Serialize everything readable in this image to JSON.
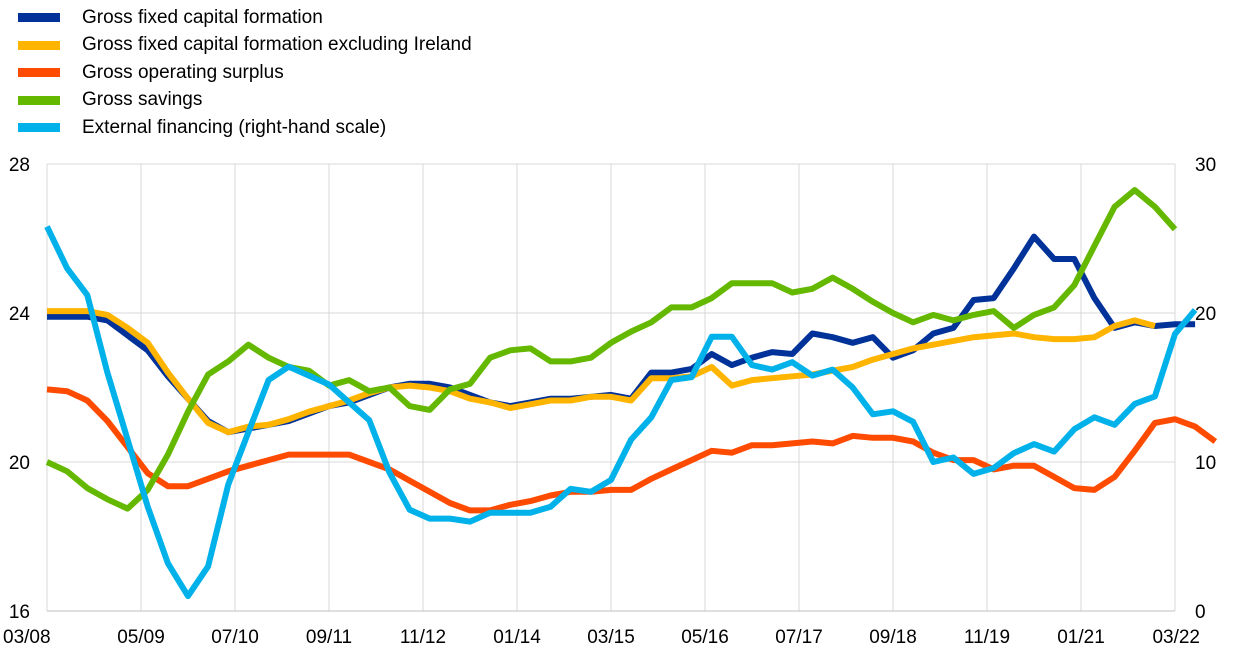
{
  "chart_data": {
    "type": "line",
    "title": "",
    "xlabel": "",
    "ylabel": "",
    "x_tick_labels": [
      "03/08",
      "05/09",
      "07/10",
      "09/11",
      "11/12",
      "01/14",
      "03/15",
      "05/16",
      "07/17",
      "09/18",
      "11/19",
      "01/21",
      "03/22"
    ],
    "x_start": "2008Q1",
    "x_end": "2022Q1",
    "left_axis": {
      "ylim": [
        16,
        28
      ],
      "ticks": [
        16,
        20,
        24,
        28
      ]
    },
    "right_axis": {
      "ylim": [
        0,
        30
      ],
      "ticks": [
        0,
        10,
        20,
        30
      ]
    },
    "grid": "vertical at x tick labels, horizontal at y ticks",
    "legend_position": "top-left",
    "series": [
      {
        "name": "Gross fixed capital formation",
        "axis": "left",
        "color": "#003299",
        "values": [
          23.9,
          23.9,
          23.9,
          23.8,
          23.4,
          23.0,
          22.3,
          21.7,
          21.1,
          20.8,
          20.9,
          21.0,
          21.1,
          21.3,
          21.5,
          21.6,
          21.8,
          22.0,
          22.1,
          22.1,
          22.0,
          21.8,
          21.6,
          21.5,
          21.6,
          21.7,
          21.7,
          21.75,
          21.8,
          21.7,
          22.4,
          22.4,
          22.5,
          22.9,
          22.6,
          22.8,
          22.95,
          22.9,
          23.45,
          23.35,
          23.2,
          23.35,
          22.8,
          23.0,
          23.45,
          23.6,
          24.35,
          24.4,
          25.2,
          26.05,
          25.45,
          25.45,
          24.4,
          23.6,
          23.75,
          23.65,
          23.7,
          23.7
        ]
      },
      {
        "name": "Gross fixed capital formation excluding Ireland",
        "axis": "left",
        "color": "#FFB400",
        "values": [
          24.05,
          24.05,
          24.05,
          23.95,
          23.6,
          23.2,
          22.4,
          21.7,
          21.05,
          20.8,
          20.95,
          21.0,
          21.15,
          21.35,
          21.5,
          21.65,
          21.85,
          22.0,
          22.05,
          22.0,
          21.9,
          21.7,
          21.6,
          21.45,
          21.55,
          21.65,
          21.65,
          21.75,
          21.75,
          21.65,
          22.25,
          22.25,
          22.3,
          22.55,
          22.05,
          22.2,
          22.25,
          22.3,
          22.35,
          22.45,
          22.55,
          22.75,
          22.9,
          23.05,
          23.15,
          23.25,
          23.35,
          23.4,
          23.45,
          23.35,
          23.3,
          23.3,
          23.35,
          23.65,
          23.8,
          23.65,
          null,
          null
        ]
      },
      {
        "name": "Gross operating surplus",
        "axis": "left",
        "color": "#FF4B00",
        "values": [
          21.95,
          21.9,
          21.65,
          21.1,
          20.4,
          19.7,
          19.35,
          19.35,
          19.55,
          19.75,
          19.9,
          20.05,
          20.2,
          20.2,
          20.2,
          20.2,
          20.0,
          19.8,
          19.5,
          19.2,
          18.9,
          18.7,
          18.7,
          18.85,
          18.95,
          19.1,
          19.2,
          19.2,
          19.25,
          19.25,
          19.55,
          19.8,
          20.05,
          20.3,
          20.25,
          20.45,
          20.45,
          20.5,
          20.55,
          20.5,
          20.7,
          20.65,
          20.65,
          20.55,
          20.25,
          20.05,
          20.05,
          19.8,
          19.9,
          19.9,
          19.6,
          19.3,
          19.25,
          19.6,
          20.3,
          21.05,
          21.15,
          20.95,
          20.55
        ]
      },
      {
        "name": "Gross savings",
        "axis": "left",
        "color": "#65B800",
        "values": [
          20.0,
          19.75,
          19.3,
          19.0,
          18.75,
          19.25,
          20.2,
          21.35,
          22.35,
          22.7,
          23.15,
          22.8,
          22.55,
          22.45,
          22.05,
          22.2,
          21.9,
          22.0,
          21.5,
          21.4,
          21.95,
          22.1,
          22.8,
          23.0,
          23.05,
          22.7,
          22.7,
          22.8,
          23.2,
          23.5,
          23.75,
          24.15,
          24.15,
          24.4,
          24.8,
          24.8,
          24.8,
          24.55,
          24.65,
          24.95,
          24.65,
          24.3,
          24.0,
          23.75,
          23.95,
          23.8,
          23.95,
          24.05,
          23.6,
          23.95,
          24.15,
          24.75,
          25.8,
          26.85,
          27.3,
          26.85,
          26.25
        ]
      },
      {
        "name": "External financing (right-hand scale)",
        "axis": "right",
        "color": "#00B1EA",
        "values": [
          25.8,
          23.0,
          21.2,
          16.0,
          11.5,
          7.0,
          3.2,
          1.0,
          3.0,
          8.5,
          12.0,
          15.5,
          16.4,
          15.8,
          15.2,
          14.0,
          12.8,
          9.3,
          6.8,
          6.2,
          6.2,
          6.0,
          6.6,
          6.6,
          6.6,
          7.0,
          8.2,
          8.0,
          8.8,
          11.5,
          13.0,
          15.5,
          15.7,
          18.4,
          18.4,
          16.5,
          16.2,
          16.7,
          15.8,
          16.2,
          15.0,
          13.2,
          13.4,
          12.7,
          10.0,
          10.3,
          9.2,
          9.6,
          10.6,
          11.2,
          10.7,
          12.2,
          13.0,
          12.5,
          13.9,
          14.4,
          18.6,
          20.2
        ]
      }
    ]
  }
}
